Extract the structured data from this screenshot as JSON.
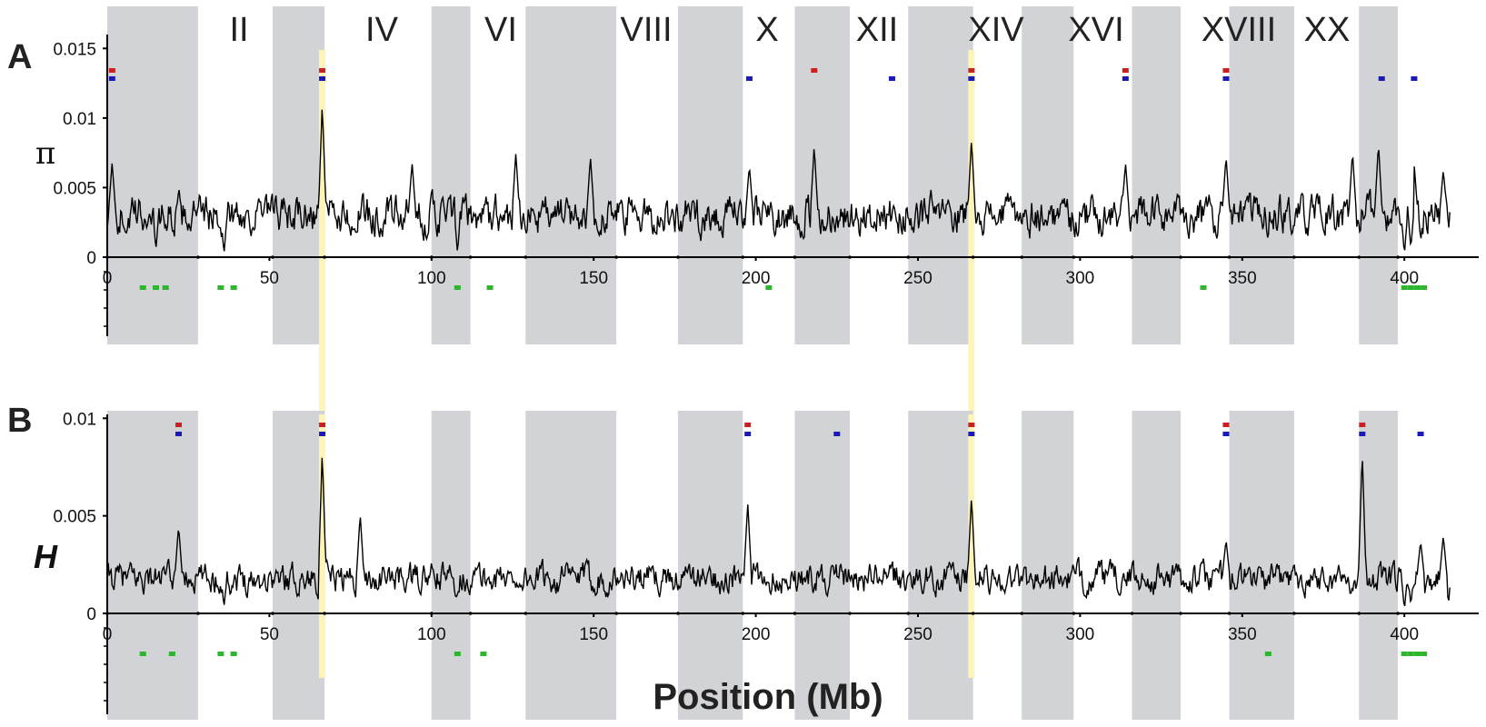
{
  "figure": {
    "chromosome_labels": [
      "II",
      "IV",
      "VI",
      "VIII",
      "X",
      "XII",
      "XIV",
      "XVI",
      "XVIII",
      "XX"
    ],
    "xlabel": "Position (Mb)",
    "x_tick_labels": [
      "0",
      "50",
      "100",
      "150",
      "200",
      "250",
      "300",
      "350",
      "400"
    ]
  },
  "colors": {
    "shade": "#d1d3d6",
    "line": "#000000",
    "highlight": "#fff4b8",
    "red_marker": "#cc1f1f",
    "blue_marker": "#1a1ab8",
    "green_marker": "#2db52d"
  },
  "chart_data": [
    {
      "type": "line",
      "panel_label": "A",
      "ylabel": "π",
      "xlim": [
        0,
        414
      ],
      "ylim": [
        0,
        0.016
      ],
      "y_tick_labels": [
        "0",
        "0.005",
        "0.01",
        "0.015"
      ],
      "y_ticks": [
        0,
        0.005,
        0.01,
        0.015
      ],
      "x_ticks": [
        0,
        50,
        100,
        150,
        200,
        250,
        300,
        350,
        400
      ],
      "shaded_chromosomes_mb": [
        [
          0,
          28
        ],
        [
          51,
          67
        ],
        [
          100,
          112
        ],
        [
          129,
          157
        ],
        [
          176,
          196
        ],
        [
          212,
          229
        ],
        [
          247,
          267
        ],
        [
          282,
          298
        ],
        [
          316,
          331
        ],
        [
          346,
          366
        ],
        [
          386,
          398
        ]
      ],
      "highlights_mb": [
        66.3,
        266.5
      ],
      "base_mean": 0.003,
      "base_noise": 0.0011,
      "peaks": [
        {
          "x": 1.5,
          "y": 0.0068
        },
        {
          "x": 66.3,
          "y": 0.011
        },
        {
          "x": 94,
          "y": 0.0068
        },
        {
          "x": 126,
          "y": 0.0075
        },
        {
          "x": 149,
          "y": 0.0072
        },
        {
          "x": 198,
          "y": 0.0066
        },
        {
          "x": 218,
          "y": 0.008
        },
        {
          "x": 266.5,
          "y": 0.0085
        },
        {
          "x": 314,
          "y": 0.0068
        },
        {
          "x": 345,
          "y": 0.0073
        },
        {
          "x": 384,
          "y": 0.0076
        },
        {
          "x": 392,
          "y": 0.0082
        },
        {
          "x": 403,
          "y": 0.0067
        },
        {
          "x": 412,
          "y": 0.0063
        }
      ],
      "dips": [
        {
          "x": 15,
          "y": 0.0005
        },
        {
          "x": 36,
          "y": 0.0002
        },
        {
          "x": 108,
          "y": 0.0003
        },
        {
          "x": 400,
          "y": 0.0002
        },
        {
          "x": 402,
          "y": 0.0006
        }
      ],
      "red_markers_mb": [
        1.5,
        66.3,
        218,
        266.5,
        314,
        345
      ],
      "blue_markers_mb": [
        1.5,
        66.3,
        198,
        242,
        266.5,
        314,
        345,
        393,
        403
      ],
      "green_markers_mb": [
        11,
        15,
        18,
        35,
        39,
        108,
        118,
        204,
        338,
        400,
        402,
        404,
        406
      ]
    },
    {
      "type": "line",
      "panel_label": "B",
      "ylabel": "H",
      "xlim": [
        0,
        414
      ],
      "ylim": [
        0,
        0.0102
      ],
      "y_tick_labels": [
        "0",
        "0.005",
        "0.01"
      ],
      "y_ticks": [
        0,
        0.005,
        0.01
      ],
      "x_ticks": [
        0,
        50,
        100,
        150,
        200,
        250,
        300,
        350,
        400
      ],
      "shaded_chromosomes_mb": [
        [
          0,
          28
        ],
        [
          51,
          67
        ],
        [
          100,
          112
        ],
        [
          129,
          157
        ],
        [
          176,
          196
        ],
        [
          212,
          229
        ],
        [
          247,
          267
        ],
        [
          282,
          298
        ],
        [
          316,
          331
        ],
        [
          346,
          366
        ],
        [
          386,
          398
        ]
      ],
      "highlights_mb": [
        66.3,
        266.5
      ],
      "base_mean": 0.0018,
      "base_noise": 0.0006,
      "peaks": [
        {
          "x": 22,
          "y": 0.0045
        },
        {
          "x": 66.3,
          "y": 0.0083
        },
        {
          "x": 78,
          "y": 0.0051
        },
        {
          "x": 197.5,
          "y": 0.0057
        },
        {
          "x": 266.5,
          "y": 0.006
        },
        {
          "x": 345,
          "y": 0.0038
        },
        {
          "x": 387,
          "y": 0.0083
        },
        {
          "x": 405,
          "y": 0.0037
        },
        {
          "x": 412,
          "y": 0.004
        }
      ],
      "dips": [
        {
          "x": 36,
          "y": 0.0003
        },
        {
          "x": 400,
          "y": 0.0002
        },
        {
          "x": 402,
          "y": 0.0004
        }
      ],
      "red_markers_mb": [
        22,
        66.3,
        197.5,
        266.5,
        345,
        387
      ],
      "blue_markers_mb": [
        22,
        66.3,
        197.5,
        225,
        266.5,
        345,
        387,
        405
      ],
      "green_markers_mb": [
        11,
        20,
        35,
        39,
        108,
        116,
        358,
        400,
        402,
        404,
        406
      ]
    }
  ]
}
